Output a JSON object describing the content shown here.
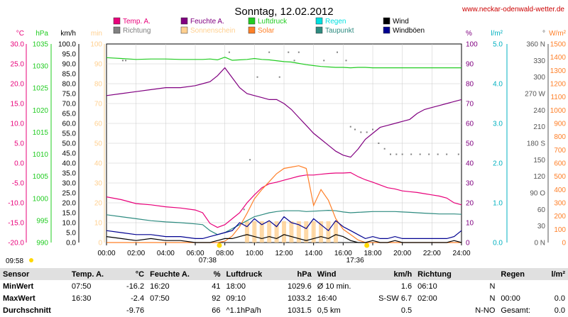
{
  "title": "Sonntag, 12.02.2012",
  "site_url": "www.neckar-odenwald-wetter.de",
  "colors": {
    "temp": "#e8007a",
    "humidity": "#800080",
    "pressure": "#22cc22",
    "rain": "#00e0e0",
    "wind": "#000000",
    "direction": "#808080",
    "sunshine": "#ffd090",
    "solar": "#ff7f27",
    "dewpoint": "#2e8b80",
    "gusts": "#000090",
    "url": "#cc0000"
  },
  "legend": [
    {
      "label": "Temp. A.",
      "color": "#e8007a"
    },
    {
      "label": "Feuchte A.",
      "color": "#800080"
    },
    {
      "label": "Luftdruck",
      "color": "#22cc22"
    },
    {
      "label": "Regen",
      "color": "#00e0e0"
    },
    {
      "label": "Wind",
      "color": "#000000"
    },
    {
      "label": "Richtung",
      "color": "#808080"
    },
    {
      "label": "Sonnenschein",
      "color": "#ffd090"
    },
    {
      "label": "Solar",
      "color": "#ff7f27"
    },
    {
      "label": "Taupunkt",
      "color": "#2e8b80"
    },
    {
      "label": "Windböen",
      "color": "#000090"
    }
  ],
  "axes": {
    "temp": {
      "unit": "°C",
      "min": -20,
      "max": 30,
      "step": 2.5,
      "ticks": [
        "30.0",
        "25.0",
        "20.0",
        "15.0",
        "10.0",
        "5.0",
        "0.0",
        "-5.0",
        "-10.0",
        "-15.0",
        "-20.0"
      ]
    },
    "pressure": {
      "unit": "hPa",
      "ticks": [
        "1035",
        "1030",
        "1025",
        "1020",
        "1015",
        "1010",
        "1005",
        "1000",
        "995",
        "990"
      ]
    },
    "wind": {
      "unit": "km/h",
      "ticks": [
        "100.0",
        "95.0",
        "90.0",
        "85.0",
        "80.0",
        "75.0",
        "70.0",
        "65.0",
        "60.0",
        "55.0",
        "50.0",
        "45.0",
        "40.0",
        "35.0",
        "30.0",
        "25.0",
        "20.0",
        "15.0",
        "10.0",
        "5.0",
        "0.0"
      ]
    },
    "sunshine": {
      "unit": "min",
      "ticks": [
        "100",
        "90",
        "80",
        "70",
        "60",
        "50",
        "40",
        "30",
        "20",
        "10",
        "0"
      ]
    },
    "humidity": {
      "unit": "%",
      "ticks": [
        "100",
        "90",
        "80",
        "70",
        "60",
        "50",
        "40",
        "30",
        "20",
        "10",
        "0"
      ]
    },
    "rain": {
      "unit": "l/m²",
      "ticks": [
        "5.0",
        "4.0",
        "3.0",
        "2.0",
        "1.0",
        "0.0"
      ]
    },
    "direction": {
      "unit": "°",
      "ticks": [
        "360 N",
        "330",
        "300",
        "270 W",
        "240",
        "210",
        "180 S",
        "150",
        "120",
        "90 O",
        "60",
        "30",
        "0 N"
      ]
    },
    "solar": {
      "unit": "W/m²",
      "ticks": [
        "1500",
        "1400",
        "1300",
        "1200",
        "1100",
        "1000",
        "900",
        "800",
        "700",
        "600",
        "500",
        "400",
        "300",
        "200",
        "100",
        "0"
      ]
    },
    "time": {
      "ticks": [
        "00:00",
        "02:00",
        "04:00",
        "06:00",
        "08:00",
        "10:00",
        "12:00",
        "14:00",
        "16:00",
        "18:00",
        "20:00",
        "22:00",
        "24:00"
      ]
    }
  },
  "sun": {
    "sunrise_label": "07:38",
    "sunset_label": "17:36",
    "marker_left": "09:58"
  },
  "chart_data": {
    "type": "line",
    "x_hours": [
      0,
      1,
      2,
      3,
      4,
      5,
      6,
      6.5,
      7,
      7.5,
      8,
      8.5,
      9,
      9.5,
      10,
      10.5,
      11,
      11.5,
      12,
      12.5,
      13,
      13.5,
      14,
      14.5,
      15,
      15.5,
      16,
      16.5,
      17,
      17.5,
      18,
      18.5,
      19,
      19.5,
      20,
      20.5,
      21,
      21.5,
      22,
      22.5,
      23,
      23.5,
      24
    ],
    "series": [
      {
        "name": "Temp. A.",
        "axis": "temp",
        "values": [
          -8.5,
          -9.2,
          -10.2,
          -10.5,
          -11,
          -11.3,
          -11.8,
          -12.5,
          -15.2,
          -16.2,
          -15.5,
          -14,
          -12.5,
          -10,
          -8,
          -6.2,
          -5.2,
          -4.8,
          -4.3,
          -3.8,
          -3.3,
          -3,
          -3,
          -2.8,
          -2.6,
          -2.5,
          -2.5,
          -2.4,
          -3.4,
          -4.2,
          -4.8,
          -5.5,
          -6.2,
          -6.5,
          -7,
          -7.2,
          -7.4,
          -7.7,
          -8,
          -8.3,
          -8.8,
          -10,
          -10.5
        ]
      },
      {
        "name": "Feuchte A.",
        "axis": "humidity",
        "values": [
          74,
          75,
          76,
          77,
          78,
          78,
          79,
          80,
          81,
          84,
          88,
          83,
          78,
          75,
          74,
          73,
          72,
          72,
          70,
          67,
          63,
          59,
          55,
          52,
          49,
          46,
          44,
          43,
          47,
          52,
          55,
          58,
          59,
          60,
          61,
          62,
          65,
          67,
          68,
          69,
          70,
          71,
          72
        ]
      },
      {
        "name": "Luftdruck",
        "axis": "pressure",
        "values": [
          1031.9,
          1031.7,
          1031.5,
          1031.6,
          1031.6,
          1031.5,
          1031.5,
          1031.5,
          1031.6,
          1031.4,
          1032.0,
          1031.3,
          1031.4,
          1031.5,
          1031.7,
          1031.5,
          1031.4,
          1031.2,
          1031.0,
          1030.9,
          1030.6,
          1030.3,
          1030.1,
          1029.9,
          1029.8,
          1029.7,
          1029.7,
          1029.6,
          1029.7,
          1029.7,
          1029.6,
          1029.6,
          1029.6,
          1029.6,
          1029.6,
          1029.6,
          1029.6,
          1029.6,
          1029.6,
          1029.6,
          1029.6,
          1029.6,
          1029.6
        ]
      },
      {
        "name": "Taupunkt",
        "axis": "temp",
        "values": [
          -13,
          -13.5,
          -14,
          -14.5,
          -14.8,
          -15,
          -15.3,
          -15.5,
          -17,
          -18,
          -17.5,
          -16.5,
          -15.5,
          -14.5,
          -13.5,
          -13,
          -12.5,
          -12.2,
          -12,
          -12,
          -12,
          -12.2,
          -12.1,
          -12,
          -11.9,
          -12,
          -12.3,
          -12.5,
          -12.4,
          -12.3,
          -12.2,
          -12.2,
          -12.2,
          -12.2,
          -12.3,
          -12.4,
          -12.5,
          -12.6,
          -12.7,
          -12.8,
          -12.8,
          -12.8,
          -12.9
        ]
      },
      {
        "name": "Solar",
        "axis": "solar",
        "values": [
          0,
          0,
          0,
          0,
          0,
          0,
          0,
          0,
          0,
          0,
          10,
          50,
          120,
          220,
          330,
          400,
          460,
          520,
          560,
          570,
          580,
          560,
          280,
          400,
          320,
          180,
          100,
          60,
          20,
          0,
          0,
          0,
          0,
          0,
          0,
          0,
          0,
          0,
          0,
          0,
          0,
          0,
          0
        ]
      },
      {
        "name": "Wind",
        "axis": "wind",
        "values": [
          3,
          2,
          1,
          2,
          1,
          1,
          0,
          0,
          0,
          1,
          2,
          2,
          3,
          4,
          3,
          2,
          3,
          2,
          4,
          3,
          2,
          1,
          2,
          3,
          2,
          4,
          3,
          1,
          0,
          0,
          1,
          0,
          0,
          1,
          0,
          0,
          0,
          0,
          0,
          0,
          0,
          1,
          0
        ]
      },
      {
        "name": "Windböen",
        "axis": "wind",
        "values": [
          6,
          5,
          4,
          4,
          3,
          3,
          2,
          2,
          3,
          4,
          5,
          6,
          10,
          8,
          12,
          9,
          11,
          8,
          13,
          10,
          9,
          7,
          12,
          9,
          6,
          11,
          8,
          6,
          4,
          2,
          3,
          2,
          2,
          3,
          2,
          2,
          2,
          2,
          2,
          2,
          2,
          3,
          6
        ]
      }
    ],
    "richtung_points": [
      {
        "x": 1.1,
        "deg": 330
      },
      {
        "x": 1.3,
        "deg": 330
      },
      {
        "x": 8.3,
        "deg": 345
      },
      {
        "x": 9.3,
        "deg": 60
      },
      {
        "x": 9.7,
        "deg": 150
      },
      {
        "x": 10.2,
        "deg": 300
      },
      {
        "x": 11.0,
        "deg": 345
      },
      {
        "x": 11.7,
        "deg": 300
      },
      {
        "x": 12.3,
        "deg": 345
      },
      {
        "x": 12.7,
        "deg": 330
      },
      {
        "x": 13.0,
        "deg": 345
      },
      {
        "x": 14.7,
        "deg": 330
      },
      {
        "x": 15.6,
        "deg": 345
      },
      {
        "x": 16.2,
        "deg": 330
      },
      {
        "x": 16.5,
        "deg": 210
      },
      {
        "x": 16.8,
        "deg": 205
      },
      {
        "x": 17.2,
        "deg": 200
      },
      {
        "x": 17.6,
        "deg": 200
      },
      {
        "x": 18.0,
        "deg": 205
      },
      {
        "x": 18.4,
        "deg": 180
      },
      {
        "x": 18.8,
        "deg": 170
      },
      {
        "x": 19.2,
        "deg": 160
      },
      {
        "x": 19.6,
        "deg": 160
      },
      {
        "x": 20.0,
        "deg": 160
      },
      {
        "x": 20.6,
        "deg": 160
      },
      {
        "x": 21.2,
        "deg": 160
      },
      {
        "x": 21.8,
        "deg": 160
      },
      {
        "x": 22.4,
        "deg": 160
      },
      {
        "x": 23.0,
        "deg": 160
      },
      {
        "x": 23.8,
        "deg": 160
      }
    ]
  },
  "stats": {
    "header": [
      "Sensor",
      "Temp. A.",
      "°C",
      "Feuchte A.",
      "%",
      "Luftdruck",
      "hPa",
      "Wind",
      "km/h",
      "Richtung",
      "",
      "Regen",
      "l/m²"
    ],
    "rows": [
      [
        "MinWert",
        "07:50",
        "-16.2",
        "16:20",
        "41",
        "18:00",
        "1029.6",
        "Ø 10 min.",
        "1.6",
        "06:10",
        "N",
        "",
        ""
      ],
      [
        "MaxWert",
        "16:30",
        "-2.4",
        "07:50",
        "92",
        "09:10",
        "1033.2",
        "16:40",
        "S-SW 6.7",
        "02:00",
        "N",
        "00:00",
        "0.0"
      ],
      [
        "Durchschnitt",
        "",
        "-9.76",
        "",
        "66",
        "^1.1hPa/h",
        "1031.5",
        "0,5 km",
        "0.5",
        "",
        "N-NO",
        "Gesamt:",
        "0.0"
      ]
    ]
  }
}
